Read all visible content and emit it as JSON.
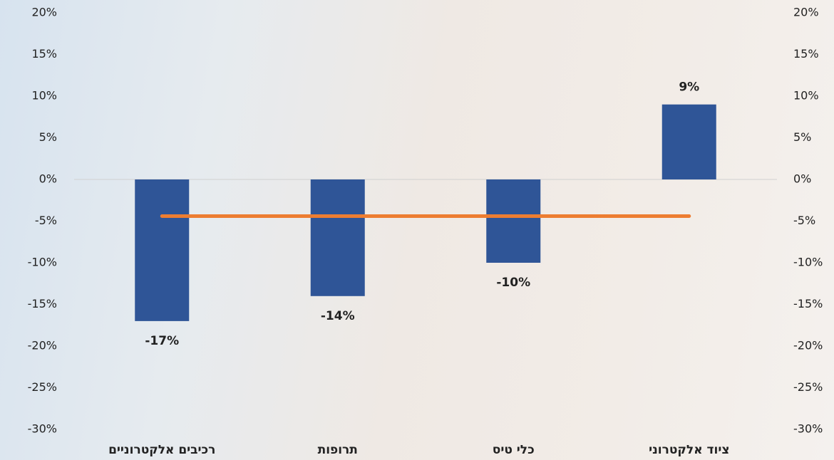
{
  "chart_data": {
    "type": "bar",
    "categories": [
      "רכיבים אלקטרוניים",
      "תרופות",
      "כלי טיס",
      "ציוד אלקטרוני"
    ],
    "series": [
      {
        "type": "bar",
        "color": "#2f5597",
        "values": [
          -17,
          -14,
          -10,
          9
        ],
        "value_labels": [
          "-17%",
          "-14%",
          "-10%",
          "9%"
        ]
      },
      {
        "type": "line",
        "color": "#ed7d31",
        "values": [
          -4.4,
          -4.4,
          -4.4,
          -4.4
        ]
      }
    ],
    "ylim": [
      -30,
      20
    ],
    "yticks": [
      {
        "value": -30,
        "label": "-30%"
      },
      {
        "value": -25,
        "label": "-25%"
      },
      {
        "value": -20,
        "label": "-20%"
      },
      {
        "value": -15,
        "label": "-15%"
      },
      {
        "value": -10,
        "label": "-10%"
      },
      {
        "value": -5,
        "label": "-5%"
      },
      {
        "value": 0,
        "label": "0%"
      },
      {
        "value": 5,
        "label": "5%"
      },
      {
        "value": 10,
        "label": "10%"
      },
      {
        "value": 15,
        "label": "15%"
      },
      {
        "value": 20,
        "label": "20%"
      }
    ],
    "y2lim": [
      -30,
      20
    ],
    "y2ticks": [
      {
        "value": -30,
        "label": "-30%"
      },
      {
        "value": -25,
        "label": "-25%"
      },
      {
        "value": -20,
        "label": "-20%"
      },
      {
        "value": -15,
        "label": "-15%"
      },
      {
        "value": -10,
        "label": "-10%"
      },
      {
        "value": -5,
        "label": "-5%"
      },
      {
        "value": 0,
        "label": "0%"
      },
      {
        "value": 5,
        "label": "5%"
      },
      {
        "value": 10,
        "label": "10%"
      },
      {
        "value": 15,
        "label": "15%"
      },
      {
        "value": 20,
        "label": "20%"
      }
    ]
  }
}
